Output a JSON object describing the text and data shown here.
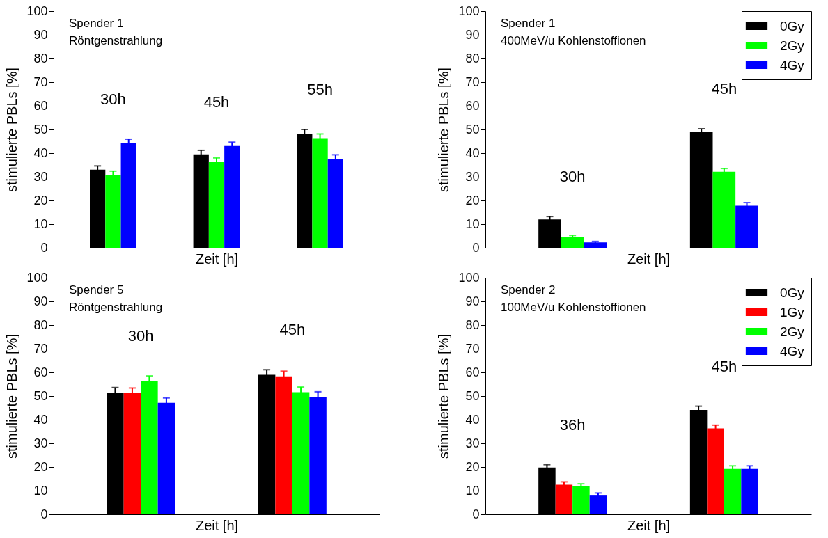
{
  "chart_data": [
    {
      "type": "bar",
      "title": "Spender 1",
      "subtitle": "Röntgenstrahlung",
      "xlabel": "Zeit [h]",
      "ylabel": "stimulierte PBLs [%]",
      "categories": [
        "30h",
        "45h",
        "55h"
      ],
      "ylim": [
        0,
        100
      ],
      "yticks": [
        0,
        10,
        20,
        30,
        40,
        50,
        60,
        70,
        80,
        90,
        100
      ],
      "series": [
        {
          "color": "#000000",
          "values": [
            33.0,
            39.5,
            48.2
          ],
          "errors": [
            1.6,
            1.7,
            1.8
          ]
        },
        {
          "color": "#00ff00",
          "values": [
            30.8,
            36.2,
            46.3
          ],
          "errors": [
            1.6,
            1.8,
            1.8
          ]
        },
        {
          "color": "#0000ff",
          "values": [
            44.2,
            43.0,
            37.5
          ],
          "errors": [
            1.7,
            1.6,
            1.8
          ]
        }
      ]
    },
    {
      "type": "bar",
      "title": "Spender 1",
      "subtitle": "400MeV/u Kohlenstoffionen",
      "xlabel": "Zeit [h]",
      "ylabel": "stimulierte PBLs [%]",
      "categories": [
        "30h",
        "45h"
      ],
      "ylim": [
        0,
        100
      ],
      "yticks": [
        0,
        10,
        20,
        30,
        40,
        50,
        60,
        70,
        80,
        90,
        100
      ],
      "legend": "top right",
      "series": [
        {
          "name": "0Gy",
          "color": "#000000",
          "values": [
            12.0,
            48.8
          ],
          "errors": [
            1.2,
            1.5
          ]
        },
        {
          "name": "2Gy",
          "color": "#00ff00",
          "values": [
            4.6,
            32.1
          ],
          "errors": [
            0.6,
            1.4
          ]
        },
        {
          "name": "4Gy",
          "color": "#0000ff",
          "values": [
            2.3,
            17.8
          ],
          "errors": [
            0.4,
            1.3
          ]
        }
      ]
    },
    {
      "type": "bar",
      "title": "Spender 5",
      "subtitle": "Röntgenstrahlung",
      "xlabel": "Zeit [h]",
      "ylabel": "stimulierte PBLs [%]",
      "categories": [
        "30h",
        "45h"
      ],
      "ylim": [
        0,
        100
      ],
      "yticks": [
        0,
        10,
        20,
        30,
        40,
        50,
        60,
        70,
        80,
        90,
        100
      ],
      "series": [
        {
          "color": "#000000",
          "values": [
            51.5,
            59.0
          ],
          "errors": [
            2.1,
            2.1
          ]
        },
        {
          "color": "#ff0000",
          "values": [
            51.4,
            58.3
          ],
          "errors": [
            2.0,
            2.2
          ]
        },
        {
          "color": "#00ff00",
          "values": [
            56.4,
            51.6
          ],
          "errors": [
            2.1,
            2.2
          ]
        },
        {
          "color": "#0000ff",
          "values": [
            47.1,
            49.7
          ],
          "errors": [
            2.1,
            2.1
          ]
        }
      ]
    },
    {
      "type": "bar",
      "title": "Spender 2",
      "subtitle": "100MeV/u Kohlenstoffionen",
      "xlabel": "Zeit [h]",
      "ylabel": "stimulierte PBLs [%]",
      "categories": [
        "36h",
        "45h"
      ],
      "ylim": [
        0,
        100
      ],
      "yticks": [
        0,
        10,
        20,
        30,
        40,
        50,
        60,
        70,
        80,
        90,
        100
      ],
      "legend": "top right",
      "series": [
        {
          "name": "0Gy",
          "color": "#000000",
          "values": [
            19.8,
            44.1
          ],
          "errors": [
            1.2,
            1.6
          ]
        },
        {
          "name": "1Gy",
          "color": "#ff0000",
          "values": [
            12.5,
            36.3
          ],
          "errors": [
            1.2,
            1.4
          ]
        },
        {
          "name": "2Gy",
          "color": "#00ff00",
          "values": [
            12.0,
            19.2
          ],
          "errors": [
            0.9,
            1.3
          ]
        },
        {
          "name": "4Gy",
          "color": "#0000ff",
          "values": [
            8.2,
            19.2
          ],
          "errors": [
            0.8,
            1.3
          ]
        }
      ]
    }
  ]
}
